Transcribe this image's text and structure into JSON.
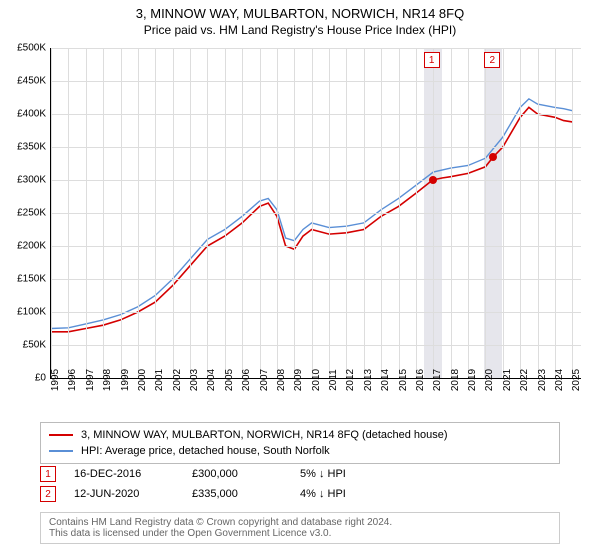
{
  "title_line1": "3, MINNOW WAY, MULBARTON, NORWICH, NR14 8FQ",
  "title_line2": "Price paid vs. HM Land Registry's House Price Index (HPI)",
  "chart": {
    "type": "line",
    "background_color": "#ffffff",
    "grid_color": "#dddddd",
    "axis_color": "#000000",
    "x_years": [
      1995,
      1996,
      1997,
      1998,
      1999,
      2000,
      2001,
      2002,
      2003,
      2004,
      2005,
      2006,
      2007,
      2008,
      2009,
      2010,
      2011,
      2012,
      2013,
      2014,
      2015,
      2016,
      2017,
      2018,
      2019,
      2020,
      2021,
      2022,
      2023,
      2024,
      2025
    ],
    "xlim": [
      1995,
      2025.5
    ],
    "ylim": [
      0,
      500000
    ],
    "ytick_step": 50000,
    "y_labels": [
      "£0",
      "£50K",
      "£100K",
      "£150K",
      "£200K",
      "£250K",
      "£300K",
      "£350K",
      "£400K",
      "£450K",
      "£500K"
    ],
    "currency_prefix": "£",
    "marker_band_color": "#e6e6ec",
    "series": [
      {
        "name": "property",
        "label": "3, MINNOW WAY, MULBARTON, NORWICH, NR14 8FQ (detached house)",
        "color": "#d40000",
        "line_width": 1.6,
        "values": [
          [
            1995,
            70000
          ],
          [
            1996,
            70000
          ],
          [
            1997,
            75000
          ],
          [
            1998,
            80000
          ],
          [
            1999,
            88000
          ],
          [
            2000,
            100000
          ],
          [
            2001,
            115000
          ],
          [
            2002,
            140000
          ],
          [
            2003,
            170000
          ],
          [
            2004,
            200000
          ],
          [
            2005,
            215000
          ],
          [
            2006,
            235000
          ],
          [
            2007,
            260000
          ],
          [
            2007.5,
            265000
          ],
          [
            2008,
            245000
          ],
          [
            2008.5,
            200000
          ],
          [
            2009,
            195000
          ],
          [
            2009.5,
            215000
          ],
          [
            2010,
            225000
          ],
          [
            2011,
            218000
          ],
          [
            2012,
            220000
          ],
          [
            2013,
            225000
          ],
          [
            2014,
            245000
          ],
          [
            2015,
            260000
          ],
          [
            2016,
            280000
          ],
          [
            2016.96,
            300000
          ],
          [
            2017.5,
            303000
          ],
          [
            2018,
            305000
          ],
          [
            2019,
            310000
          ],
          [
            2020,
            320000
          ],
          [
            2020.45,
            335000
          ],
          [
            2021,
            350000
          ],
          [
            2022,
            395000
          ],
          [
            2022.5,
            410000
          ],
          [
            2023,
            400000
          ],
          [
            2024,
            395000
          ],
          [
            2024.5,
            390000
          ],
          [
            2025,
            388000
          ]
        ]
      },
      {
        "name": "hpi",
        "label": "HPI: Average price, detached house, South Norfolk",
        "color": "#5a8fd6",
        "line_width": 1.4,
        "values": [
          [
            1995,
            75000
          ],
          [
            1996,
            76000
          ],
          [
            1997,
            82000
          ],
          [
            1998,
            88000
          ],
          [
            1999,
            96000
          ],
          [
            2000,
            108000
          ],
          [
            2001,
            125000
          ],
          [
            2002,
            150000
          ],
          [
            2003,
            180000
          ],
          [
            2004,
            210000
          ],
          [
            2005,
            225000
          ],
          [
            2006,
            245000
          ],
          [
            2007,
            268000
          ],
          [
            2007.5,
            272000
          ],
          [
            2008,
            255000
          ],
          [
            2008.5,
            212000
          ],
          [
            2009,
            208000
          ],
          [
            2009.5,
            225000
          ],
          [
            2010,
            235000
          ],
          [
            2011,
            228000
          ],
          [
            2012,
            230000
          ],
          [
            2013,
            235000
          ],
          [
            2014,
            255000
          ],
          [
            2015,
            272000
          ],
          [
            2016,
            292000
          ],
          [
            2017,
            312000
          ],
          [
            2018,
            318000
          ],
          [
            2019,
            322000
          ],
          [
            2020,
            333000
          ],
          [
            2021,
            365000
          ],
          [
            2022,
            410000
          ],
          [
            2022.5,
            423000
          ],
          [
            2023,
            415000
          ],
          [
            2024,
            410000
          ],
          [
            2024.5,
            408000
          ],
          [
            2025,
            405000
          ]
        ]
      }
    ],
    "sale_points": [
      {
        "n": "1",
        "x": 2016.96,
        "y": 300000,
        "color": "#d40000"
      },
      {
        "n": "2",
        "x": 2020.45,
        "y": 335000,
        "color": "#d40000"
      }
    ],
    "top_markers": [
      {
        "n": "1",
        "x": 2016.96,
        "color": "#d40000"
      },
      {
        "n": "2",
        "x": 2020.45,
        "color": "#d40000"
      }
    ]
  },
  "legend": {
    "border_color": "#bbbbbb"
  },
  "sales": [
    {
      "n": "1",
      "date": "16-DEC-2016",
      "price": "£300,000",
      "diff": "5% ↓ HPI",
      "color": "#d40000"
    },
    {
      "n": "2",
      "date": "12-JUN-2020",
      "price": "£335,000",
      "diff": "4% ↓ HPI",
      "color": "#d40000"
    }
  ],
  "footer": {
    "line1": "Contains HM Land Registry data © Crown copyright and database right 2024.",
    "line2": "This data is licensed under the Open Government Licence v3.0."
  }
}
